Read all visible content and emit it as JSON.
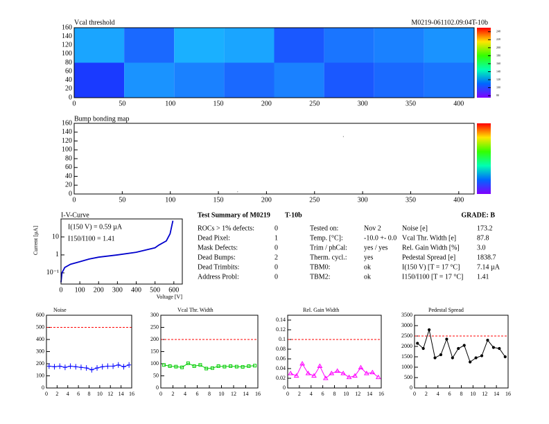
{
  "chart_data": [
    {
      "type": "heatmap",
      "title": "Vcal threshold",
      "label": "M0219-061102.09:04T-10b",
      "xlim": [
        0,
        416
      ],
      "xticks": [
        0,
        50,
        100,
        150,
        200,
        250,
        300,
        350,
        400
      ],
      "ylim": [
        0,
        160
      ],
      "yticks": [
        0,
        20,
        40,
        60,
        80,
        100,
        120,
        140,
        160
      ],
      "values": [
        [
          100,
          115,
          112,
          108,
          112,
          105,
          108,
          110
        ],
        [
          118,
          108,
          120,
          118,
          105,
          110,
          112,
          115
        ]
      ],
      "zlim": [
        75,
        250
      ],
      "zticks": [
        80,
        100,
        120,
        140,
        160,
        180,
        200,
        220,
        240
      ]
    },
    {
      "type": "scatter-map",
      "title": "Bump bonding map",
      "xlim": [
        0,
        416
      ],
      "xticks": [
        0,
        50,
        100,
        150,
        200,
        250,
        300,
        350,
        400
      ],
      "ylim": [
        0,
        160
      ],
      "yticks": [
        0,
        20,
        40,
        60,
        80,
        100,
        120,
        140,
        160
      ],
      "x": [
        280,
        170
      ],
      "y": [
        130,
        5
      ]
    },
    {
      "type": "line",
      "title": "I-V-Curve",
      "color": "#0000cc",
      "x": [
        0,
        5,
        20,
        50,
        100,
        150,
        200,
        300,
        400,
        500,
        520,
        560,
        580,
        595
      ],
      "values": [
        0.03,
        0.1,
        0.2,
        0.3,
        0.42,
        0.59,
        0.75,
        1.0,
        1.4,
        2.5,
        3.5,
        6,
        15,
        80
      ],
      "xlim": [
        0,
        645
      ],
      "xticks": [
        0,
        100,
        200,
        300,
        400,
        500,
        600
      ],
      "ylim": [
        0.024,
        100
      ],
      "log_y": true,
      "yticks": [
        {
          "value": 0.1,
          "label": "10⁻¹"
        },
        1,
        10
      ],
      "xlabel": "Voltage [V]",
      "ylabel": "Current [µA]",
      "annotations": [
        "I(150 V) = 0.59 µA",
        "I150/I100 = 1.41"
      ]
    },
    {
      "type": "line",
      "title": "Noise",
      "color": "#0000ff",
      "marker": "cross",
      "x": [
        0.5,
        1.5,
        2.5,
        3.5,
        4.5,
        5.5,
        6.5,
        7.5,
        8.5,
        9.5,
        10.5,
        11.5,
        12.5,
        13.5,
        14.5,
        15.5
      ],
      "values": [
        180,
        175,
        180,
        170,
        180,
        175,
        170,
        165,
        150,
        165,
        175,
        180,
        180,
        190,
        175,
        190
      ],
      "reference_line": 500,
      "reference_color": "#ff0000",
      "xlim": [
        0,
        16
      ],
      "xticks": [
        0,
        2,
        4,
        6,
        8,
        10,
        12,
        14,
        16
      ],
      "ylim": [
        0,
        600
      ],
      "yticks": [
        0,
        100,
        200,
        300,
        400,
        500,
        600
      ]
    },
    {
      "type": "line",
      "title": "Vcal Thr. Width",
      "color": "#00cc00",
      "marker": "square",
      "x": [
        0.5,
        1.5,
        2.5,
        3.5,
        4.5,
        5.5,
        6.5,
        7.5,
        8.5,
        9.5,
        10.5,
        11.5,
        12.5,
        13.5,
        14.5,
        15.5
      ],
      "values": [
        95,
        90,
        88,
        85,
        102,
        90,
        95,
        80,
        82,
        90,
        88,
        90,
        88,
        87,
        90,
        92
      ],
      "reference_line": 200,
      "reference_color": "#ff0000",
      "xlim": [
        0,
        16
      ],
      "xticks": [
        0,
        2,
        4,
        6,
        8,
        10,
        12,
        14,
        16
      ],
      "ylim": [
        0,
        300
      ],
      "yticks": [
        0,
        50,
        100,
        150,
        200,
        250,
        300
      ]
    },
    {
      "type": "line",
      "title": "Rel. Gain Width",
      "color": "#ff00ff",
      "marker": "triangle",
      "x": [
        0.5,
        1.5,
        2.5,
        3.5,
        4.5,
        5.5,
        6.5,
        7.5,
        8.5,
        9.5,
        10.5,
        11.5,
        12.5,
        13.5,
        14.5,
        15.5
      ],
      "values": [
        0.03,
        0.025,
        0.05,
        0.03,
        0.025,
        0.045,
        0.02,
        0.03,
        0.035,
        0.03,
        0.022,
        0.025,
        0.042,
        0.03,
        0.032,
        0.022
      ],
      "reference_line": 0.1,
      "reference_color": "#ff0000",
      "xlim": [
        0,
        16
      ],
      "xticks": [
        0,
        2,
        4,
        6,
        8,
        10,
        12,
        14,
        16
      ],
      "ylim": [
        0,
        0.15
      ],
      "yticks": [
        0,
        0.02,
        0.04,
        0.06,
        0.08,
        0.1,
        0.12,
        0.14
      ]
    },
    {
      "type": "line",
      "title": "Pedestal Spread",
      "color": "#000000",
      "marker": "dot",
      "x": [
        0.5,
        1.5,
        2.5,
        3.5,
        4.5,
        5.5,
        6.5,
        7.5,
        8.5,
        9.5,
        10.5,
        11.5,
        12.5,
        13.5,
        14.5,
        15.5
      ],
      "values": [
        2150,
        1900,
        2800,
        1450,
        1600,
        2350,
        1450,
        1900,
        2050,
        1250,
        1450,
        1550,
        2300,
        1950,
        1900,
        1500
      ],
      "reference_line": 2500,
      "reference_color": "#ff0000",
      "xlim": [
        0,
        16
      ],
      "xticks": [
        0,
        2,
        4,
        6,
        8,
        10,
        12,
        14,
        16
      ],
      "ylim": [
        0,
        3500
      ],
      "yticks": [
        0,
        500,
        1000,
        1500,
        2000,
        2500,
        3000,
        3500
      ]
    }
  ],
  "summary": {
    "title": "Test Summary of M0219",
    "label": "T-10b",
    "grade": "GRADE:  B",
    "columns": [
      [
        [
          "ROCs > 1% defects:",
          "0"
        ],
        [
          "Dead Pixel:",
          "1"
        ],
        [
          "Mask Defects:",
          "0"
        ],
        [
          "Dead Bumps:",
          "2"
        ],
        [
          "Dead Trimbits:",
          "0"
        ],
        [
          "Address Probl:",
          "0"
        ]
      ],
      [
        [
          "Tested on:",
          "Nov 2"
        ],
        [
          "Temp. [°C]:",
          "-10.0 +- 0.0"
        ],
        [
          "Trim / phCal:",
          "yes / yes"
        ],
        [
          "Therm. cycl.:",
          "yes"
        ],
        [
          "TBM0:",
          "ok"
        ],
        [
          "TBM2:",
          "ok"
        ]
      ],
      [
        [
          "Noise [e]",
          "173.2"
        ],
        [
          "Vcal Thr. Width [e]",
          "87.8"
        ],
        [
          "Rel. Gain Width [%]",
          "3.0"
        ],
        [
          "Pedestal Spread [e]",
          "1838.7"
        ],
        [
          "I(150 V) [T = 17 °C]",
          "7.14 µA"
        ],
        [
          "I150/I100  [T = 17 °C]",
          "1.41"
        ]
      ]
    ]
  }
}
